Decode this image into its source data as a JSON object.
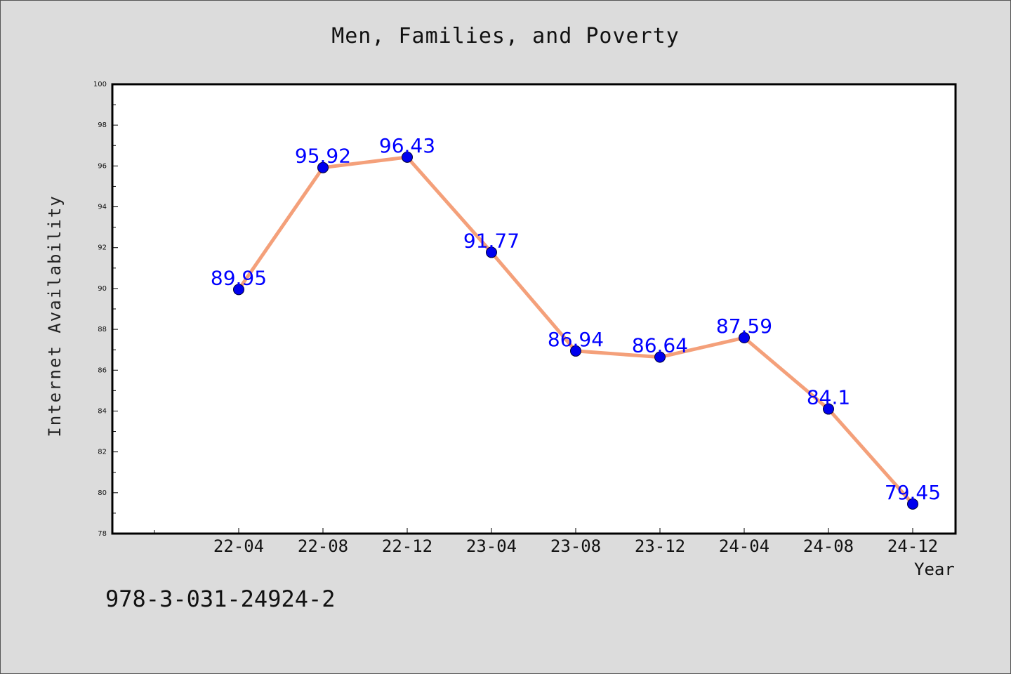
{
  "chart_data": {
    "type": "line",
    "title": "Men, Families, and Poverty",
    "xlabel": "Year",
    "ylabel": "Internet Availability",
    "categories": [
      "22-04",
      "22-08",
      "22-12",
      "23-04",
      "23-08",
      "23-12",
      "24-04",
      "24-08",
      "24-12"
    ],
    "series": [
      {
        "values": [
          89.95,
          95.92,
          96.43,
          91.77,
          86.94,
          86.64,
          87.59,
          84.1,
          79.45
        ],
        "data_labels": [
          "89.95",
          "95.92",
          "96.43",
          "91.77",
          "86.94",
          "86.64",
          "87.59",
          "84.1",
          "79.45"
        ],
        "line_color": "#f4a07a",
        "marker_color": "#0000ee"
      }
    ],
    "ylim": [
      78,
      100
    ],
    "yticks": [
      "78",
      "80",
      "82",
      "84",
      "86",
      "88",
      "90",
      "92",
      "94",
      "96",
      "98",
      "100"
    ],
    "grid": false,
    "legend": "none",
    "label_color": "#0000ff"
  },
  "footnote": "978-3-031-24924-2"
}
